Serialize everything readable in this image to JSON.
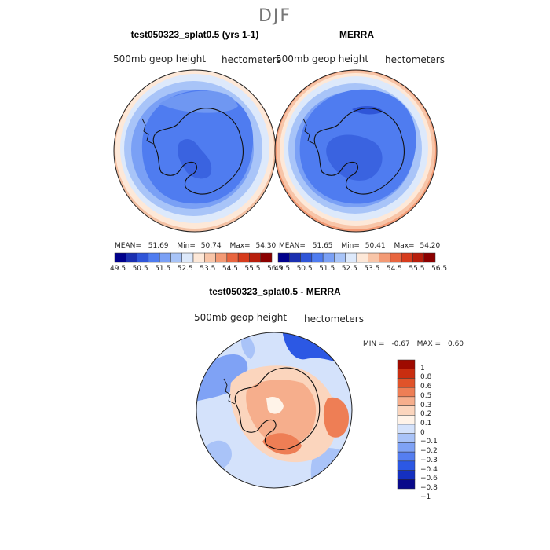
{
  "season_title": "DJF",
  "colors": {
    "abs_palette": [
      "#00008b",
      "#1a2fb0",
      "#2f55d8",
      "#4f7cf0",
      "#7aa0f5",
      "#a8c4f8",
      "#dde9fb",
      "#fde8d8",
      "#f8c5a8",
      "#f39a75",
      "#e8653f",
      "#d63b1c",
      "#b81e0c",
      "#8b0000"
    ],
    "diff_palette": [
      "#0a0a8a",
      "#1530c0",
      "#2c58e4",
      "#557ef0",
      "#7fa2f5",
      "#a9c3f8",
      "#d4e2fb",
      "#fff3e8",
      "#fbd5bd",
      "#f6ae8c",
      "#ee7e55",
      "#e0532a",
      "#c92e10",
      "#9e0a00"
    ]
  },
  "chart_data": [
    {
      "id": "model",
      "type": "heatmap",
      "projection": "south-polar-stereographic",
      "title": "test050323_splat0.5 (yrs 1-1)",
      "variable_label": "500mb geop height",
      "units_label": "hectometers",
      "mean_label": "MEAN=",
      "mean": "51.69",
      "min_label": "Min=",
      "min": "50.74",
      "max_label": "Max=",
      "max": "54.30",
      "levels": [
        "49.5",
        "50.5",
        "51.5",
        "52.5",
        "53.5",
        "54.5",
        "55.5",
        "56.5"
      ],
      "color_count": 14
    },
    {
      "id": "obs",
      "type": "heatmap",
      "projection": "south-polar-stereographic",
      "title": "MERRA",
      "variable_label": "500mb geop height",
      "units_label": "hectometers",
      "mean_label": "MEAN=",
      "mean": "51.65",
      "min_label": "Min=",
      "min": "50.41",
      "max_label": "Max=",
      "max": "54.20",
      "levels": [
        "49.5",
        "50.5",
        "51.5",
        "52.5",
        "53.5",
        "54.5",
        "55.5",
        "56.5"
      ],
      "color_count": 14
    },
    {
      "id": "diff",
      "type": "heatmap",
      "projection": "south-polar-stereographic",
      "title": "test050323_splat0.5 - MERRA",
      "variable_label": "500mb geop height",
      "units_label": "hectometers",
      "min_label": "MIN =",
      "min": "-0.67",
      "max_label": "MAX =",
      "max": "0.60",
      "levels": [
        "1",
        "0.8",
        "0.6",
        "0.5",
        "0.3",
        "0.2",
        "0.1",
        "0",
        "−0.1",
        "−0.2",
        "−0.3",
        "−0.4",
        "−0.6",
        "−0.8",
        "−1"
      ]
    }
  ]
}
